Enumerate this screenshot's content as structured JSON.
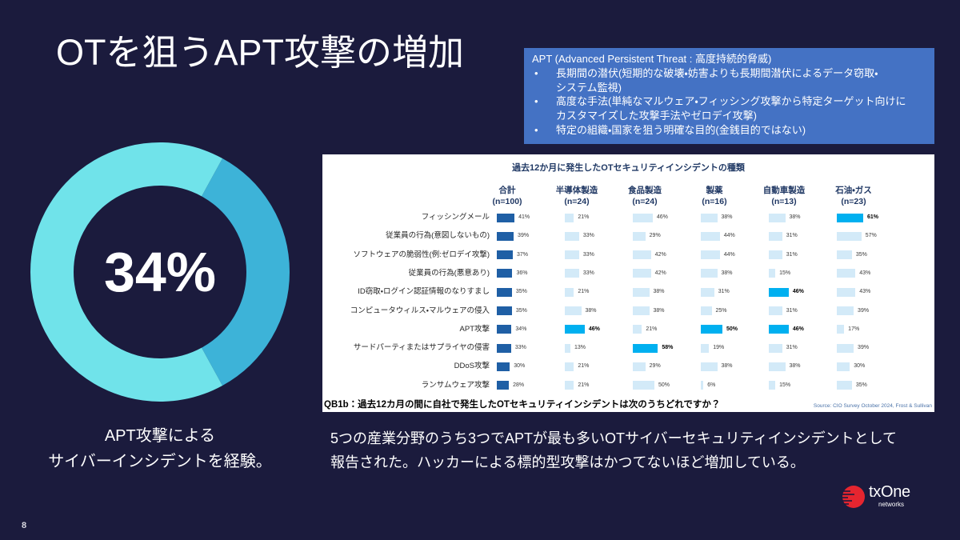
{
  "slide": {
    "title": "OTを狙うAPT攻撃の増加",
    "page_number": "8"
  },
  "apt_box": {
    "heading": "APT (Advanced Persistent Threat : 高度持続的脅威)",
    "bullet_symbol": "•",
    "bullets": [
      {
        "lines": [
          "長期間の潜伏(短期的な破壊・妨害よりも長期間潜伏によるデータ窃取・",
          "システム監視)"
        ]
      },
      {
        "lines": [
          "高度な手法(単純なマルウェア・フィッシング攻撃から特定ターゲット向けに",
          "カスタマイズした攻撃手法やゼロデイ攻撃)"
        ]
      },
      {
        "lines": [
          "特定の組織・国家を狙う明確な目的(金銭目的ではない)"
        ]
      }
    ]
  },
  "donut_caption": {
    "lines": [
      "APT攻撃による",
      "サイバーインシデントを経験。"
    ]
  },
  "summary": {
    "lines": [
      "5つの産業分野のうち3つでAPTが最も多いOTサイバーセキュリティインシデントとして",
      "報告された。ハッカーによる標的型攻撃はかつてないほど増加している。"
    ]
  },
  "logo": {
    "name": "txOne",
    "subtitle": "networks"
  },
  "colors": {
    "background": "#1b1b3d",
    "info_box": "#4472c4",
    "logo_red": "#e5252f"
  },
  "chart_data": [
    {
      "type": "pie",
      "style": "donut",
      "center_label": "34%",
      "slices": [
        {
          "value": 34,
          "color": "#3db3d8"
        },
        {
          "value": 66,
          "color": "#70e3ea"
        }
      ]
    },
    {
      "type": "bar",
      "orientation": "horizontal",
      "title": "過去12か月に発生したOTセキュリティインシデントの種類",
      "value_suffix": "%",
      "categories": [
        "フィッシングメール",
        "従業員の行為(意図しないもの)",
        "ソフトウェアの脆弱性(例:ゼロデイ攻撃)",
        "従業員の行為(悪意あり)",
        "ID窃取・ログイン認証情報のなりすまし",
        "コンピュータウィルス・マルウェアの侵入",
        "APT攻撃",
        "サードパーティまたはサプライヤの侵害",
        "DDoS攻撃",
        "ランサムウェア攻撃"
      ],
      "series": [
        {
          "name": "合計",
          "n_label": "(n=100)",
          "values": [
            41,
            39,
            37,
            36,
            35,
            35,
            34,
            33,
            30,
            28
          ],
          "highlight_indices": [],
          "color": "#1f5fa5"
        },
        {
          "name": "半導体製造",
          "n_label": "(n=24)",
          "values": [
            21,
            33,
            33,
            33,
            21,
            38,
            46,
            13,
            21,
            21
          ],
          "highlight_indices": [
            6
          ]
        },
        {
          "name": "食品製造",
          "n_label": "(n=24)",
          "values": [
            46,
            29,
            42,
            42,
            38,
            38,
            21,
            58,
            29,
            50
          ],
          "highlight_indices": [
            7
          ]
        },
        {
          "name": "製薬",
          "n_label": "(n=16)",
          "values": [
            38,
            44,
            44,
            38,
            31,
            25,
            50,
            19,
            38,
            6
          ],
          "highlight_indices": [
            6
          ]
        },
        {
          "name": "自動車製造",
          "n_label": "(n=13)",
          "values": [
            38,
            31,
            31,
            15,
            46,
            31,
            46,
            31,
            38,
            15
          ],
          "highlight_indices": [
            4,
            6
          ]
        },
        {
          "name": "石油・ガス",
          "n_label": "(n=23)",
          "values": [
            61,
            57,
            35,
            43,
            43,
            39,
            17,
            39,
            30,
            35
          ],
          "highlight_indices": [
            0
          ]
        }
      ],
      "default_bar_color": "#d3eaf8",
      "highlight_color": "#00b0f0",
      "question": "QB1b：過去12カ月の間に自社で発生したOTセキュリティインシデントは次のうちどれですか？",
      "source": "Source: CIO Survey October 2024, Frost & Sullivan"
    }
  ]
}
